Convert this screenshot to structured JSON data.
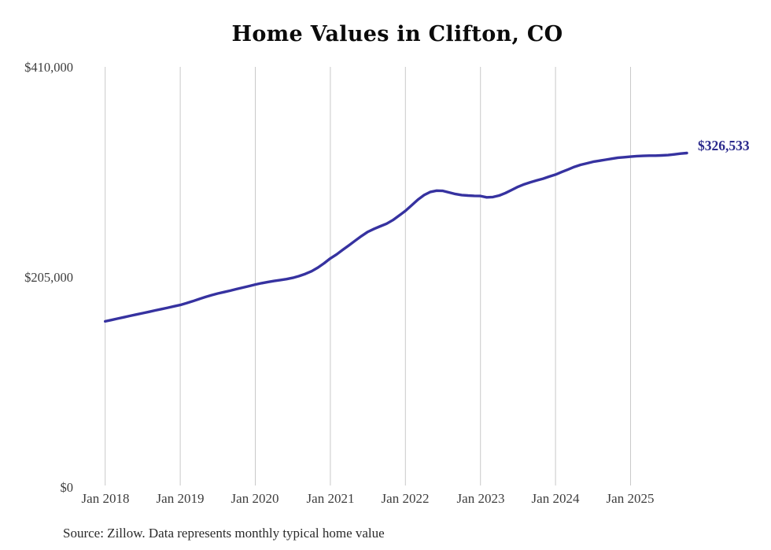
{
  "title": "Home Values in Clifton, CO",
  "source_note": "Source: Zillow. Data represents monthly typical home value",
  "end_label": "$326,533",
  "colors": {
    "line": "#3632a0",
    "end_label": "#2b2a8c",
    "gridline": "#c9c9c9",
    "axis_text": "#3d3d3d",
    "title_text": "#0b0b0b",
    "background": "#ffffff"
  },
  "y_axis": {
    "ticks": [
      "$0",
      "$205,000",
      "$410,000"
    ],
    "min": 0,
    "max": 410000
  },
  "x_axis": {
    "ticks": [
      "Jan 2018",
      "Jan 2019",
      "Jan 2020",
      "Jan 2021",
      "Jan 2022",
      "Jan 2023",
      "Jan 2024",
      "Jan 2025"
    ]
  },
  "chart_data": {
    "type": "line",
    "title": "Home Values in Clifton, CO",
    "series_name": "Typical home value (monthly)",
    "x_start": "Jan 2018",
    "x_end": "Oct 2025",
    "months_per_point": 1,
    "ylim": [
      0,
      410000
    ],
    "y_tick_values": [
      0,
      205000,
      410000
    ],
    "grid": "vertical-only",
    "final_value": 326533,
    "monthly_values": [
      162000,
      163300,
      164700,
      166000,
      167400,
      168700,
      170000,
      171300,
      172700,
      174000,
      175300,
      176700,
      178000,
      179800,
      181700,
      183800,
      185800,
      187600,
      189200,
      190600,
      192000,
      193500,
      195000,
      196500,
      198000,
      199300,
      200500,
      201500,
      202400,
      203300,
      204500,
      206200,
      208400,
      211000,
      214500,
      218800,
      223500,
      227500,
      232000,
      236500,
      241000,
      245500,
      249500,
      252500,
      255000,
      257500,
      261000,
      265500,
      270000,
      275500,
      281000,
      285500,
      288500,
      289800,
      289500,
      288000,
      286500,
      285500,
      285000,
      284700,
      284500,
      283200,
      283500,
      285000,
      287500,
      290500,
      293500,
      296000,
      298000,
      299800,
      301500,
      303500,
      305500,
      308000,
      310500,
      313000,
      315000,
      316500,
      318000,
      319000,
      320000,
      321000,
      322000,
      322500,
      323000,
      323500,
      323800,
      324000,
      324000,
      324200,
      324500,
      325200,
      326000,
      326533
    ]
  }
}
